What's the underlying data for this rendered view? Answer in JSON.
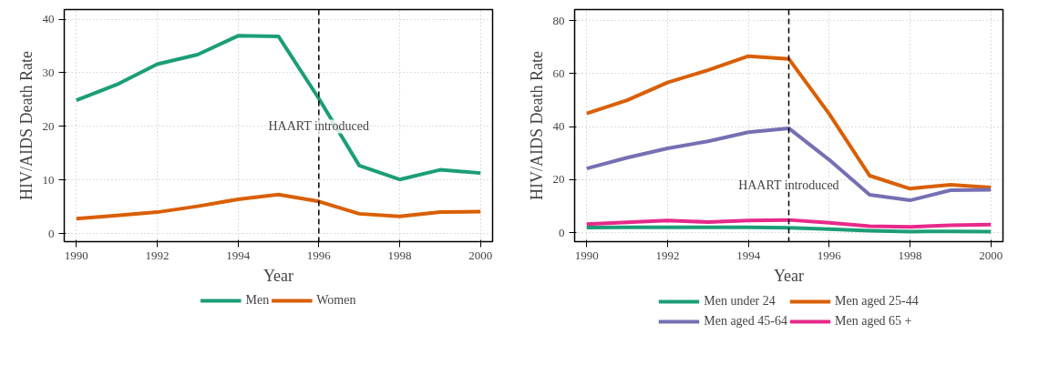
{
  "chart_data": [
    {
      "type": "line",
      "xlabel": "Year",
      "ylabel": "HIV/AIDS Death Rate",
      "x": [
        1990,
        1991,
        1992,
        1993,
        1994,
        1995,
        1996,
        1997,
        1998,
        1999,
        2000
      ],
      "series": [
        {
          "name": "Men",
          "color": "#1b9e77",
          "values": [
            24.9,
            27.8,
            31.6,
            33.4,
            36.9,
            36.8,
            25.2,
            12.7,
            10.1,
            11.9,
            11.3
          ]
        },
        {
          "name": "Women",
          "color": "#d95f02",
          "values": [
            2.8,
            3.4,
            4.0,
            5.1,
            6.4,
            7.3,
            6.0,
            3.7,
            3.2,
            4.0,
            4.1
          ]
        }
      ],
      "xlim": [
        1989.7,
        2000.3
      ],
      "ylim": [
        -1.5,
        41.8
      ],
      "xticks": [
        1990,
        1992,
        1994,
        1996,
        1998,
        2000
      ],
      "yticks": [
        0,
        10,
        20,
        30,
        40
      ],
      "ref_lines": [
        {
          "axis": "x",
          "value": 1996,
          "line_style": "dashed",
          "color": "#000000"
        }
      ],
      "annotations": [
        {
          "text": "HAART introduced",
          "x": 1996,
          "y": 20
        }
      ],
      "grid": true,
      "legend": "bottom",
      "marker": "none",
      "line_style": "solid"
    },
    {
      "type": "line",
      "xlabel": "Year",
      "ylabel": "HIV/AIDS Death Rate",
      "x": [
        1990,
        1991,
        1992,
        1993,
        1994,
        1995,
        1996,
        1997,
        1998,
        1999,
        2000
      ],
      "series": [
        {
          "name": "Men under 24",
          "color": "#1b9e77",
          "values": [
            1.9,
            2.0,
            2.0,
            2.0,
            2.0,
            1.8,
            1.3,
            0.7,
            0.4,
            0.5,
            0.4
          ]
        },
        {
          "name": "Men aged 25-44",
          "color": "#d95f02",
          "values": [
            45,
            50,
            56.7,
            61.3,
            66.6,
            65.6,
            44.8,
            21.5,
            16.6,
            18.1,
            17
          ]
        },
        {
          "name": "Men aged 45-64",
          "color": "#7570b3",
          "values": [
            24.2,
            28.3,
            31.8,
            34.5,
            37.9,
            39.4,
            27.5,
            14.3,
            12.2,
            16,
            16.2
          ]
        },
        {
          "name": "Men aged 65 +",
          "color": "#e7298a",
          "values": [
            3.2,
            3.9,
            4.6,
            4.0,
            4.6,
            4.8,
            3.7,
            2.4,
            2.2,
            2.8,
            3.0
          ]
        }
      ],
      "xlim": [
        1989.7,
        2000.3
      ],
      "ylim": [
        -3.4,
        84.2
      ],
      "xticks": [
        1990,
        1992,
        1994,
        1996,
        1998,
        2000
      ],
      "yticks": [
        0,
        20,
        40,
        60,
        80
      ],
      "ref_lines": [
        {
          "axis": "x",
          "value": 1995,
          "line_style": "dashed",
          "color": "#000000"
        }
      ],
      "annotations": [
        {
          "text": "HAART introduced",
          "x": 1995,
          "y": 18
        }
      ],
      "grid": true,
      "legend": "bottom",
      "marker": "none",
      "line_style": "solid"
    }
  ]
}
